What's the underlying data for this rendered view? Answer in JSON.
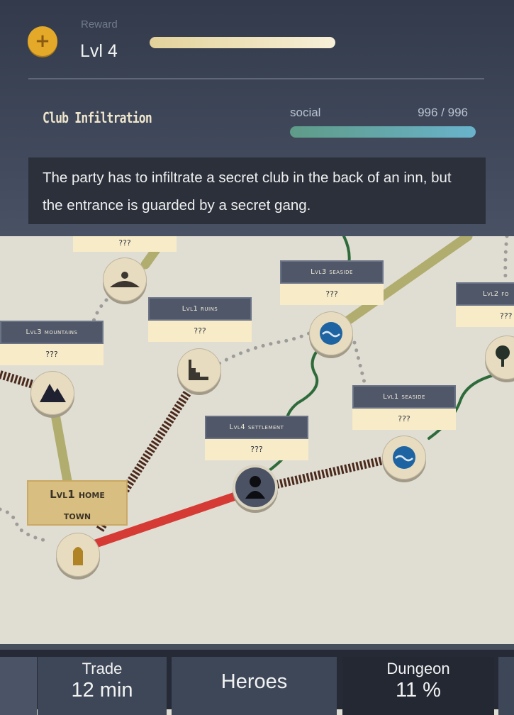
{
  "quest": {
    "reward_label": "Reward",
    "reward_level": "Lvl 4",
    "reward_icon": "plus-coin-icon",
    "title": "Club Infiltration",
    "type": "social",
    "progress_text": "996 / 996",
    "progress_fraction": 1.0,
    "description": "The party has to infiltrate a secret club in the back of an inn, but the entrance is guarded by a secret gang."
  },
  "map": {
    "locations": [
      {
        "label": "",
        "value": "???",
        "icon": "sunrise-icon"
      },
      {
        "label": "Lvl3 seaside",
        "value": "???",
        "icon": "wave-icon"
      },
      {
        "label": "Lvl2 fo",
        "value": "???",
        "icon": "tree-icon"
      },
      {
        "label": "Lvl1 ruins",
        "value": "???",
        "icon": "ruins-icon"
      },
      {
        "label": "Lvl3 mountains",
        "value": "???",
        "icon": "mountain-icon"
      },
      {
        "label": "Lvl1 seaside",
        "value": "???",
        "icon": "wave-icon"
      },
      {
        "label": "Lvl4 settlement",
        "value": "???",
        "icon": "person-icon"
      }
    ],
    "hometown": {
      "line1": "Lvl1 home",
      "line2": "town",
      "icon": "door-icon"
    }
  },
  "nav": {
    "trade_label": "Trade",
    "trade_value": "12 min",
    "heroes_label": "Heroes",
    "dungeon_label": "Dungeon",
    "dungeon_value": "11 %"
  },
  "colors": {
    "panel": "#3a4254",
    "accent_gold": "#e4a928",
    "route_red": "#d63a34",
    "route_green": "#2d6b3a",
    "road_olive": "#b0ad6e",
    "rail_brown": "#4b2a1c"
  }
}
